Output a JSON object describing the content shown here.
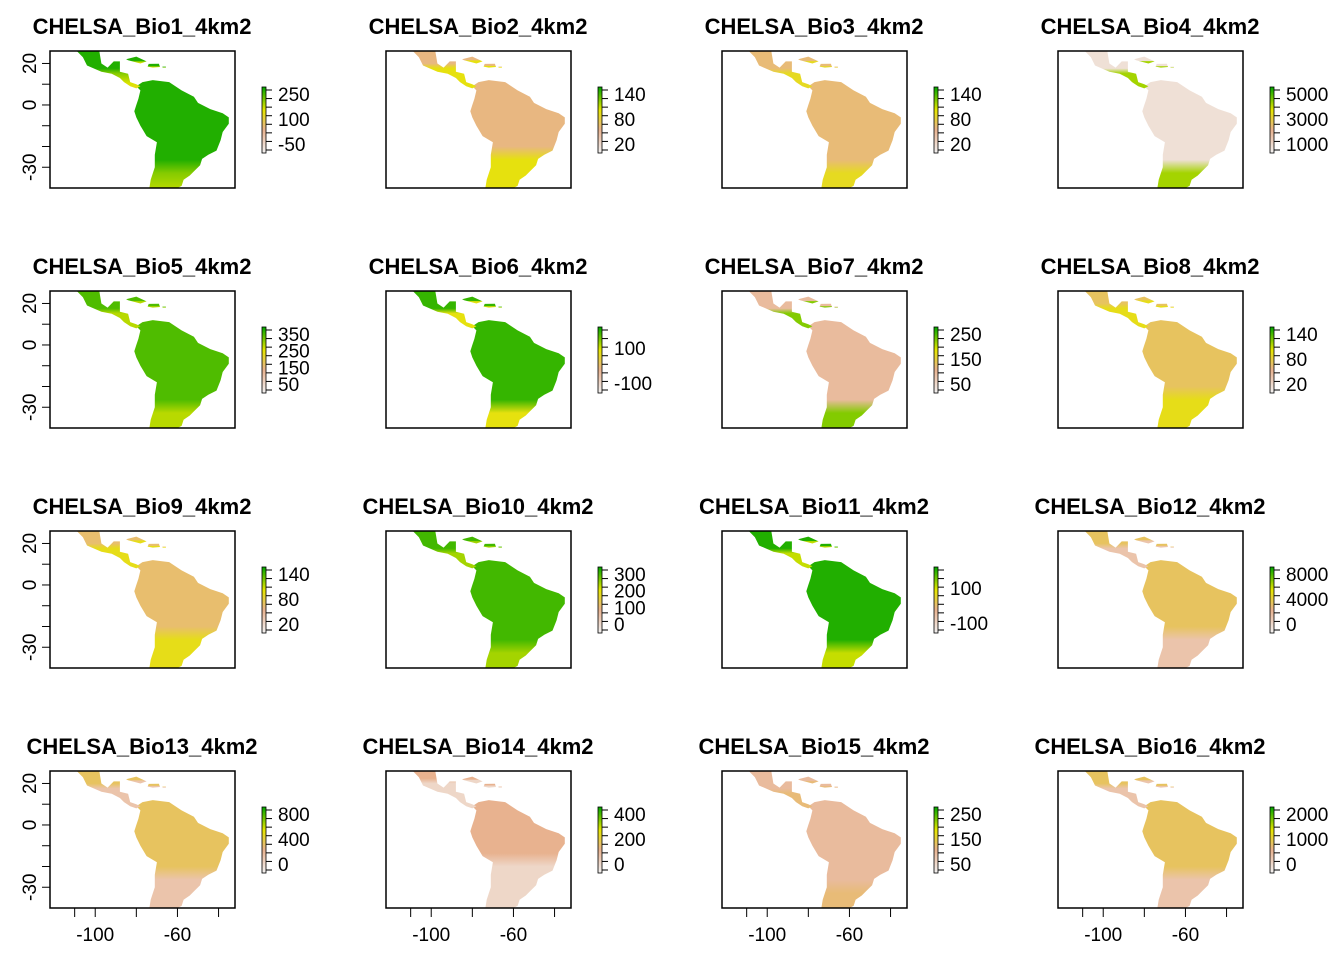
{
  "figure": {
    "colors": {
      "low": "#f2f2f2",
      "mid1": "#e8b28f",
      "mid2": "#e6e600",
      "high": "#00a600",
      "frame": "#000000"
    },
    "shared_axes": {
      "x_ticks": [
        -100,
        -60
      ],
      "y_ticks": [
        20,
        0,
        -30
      ]
    }
  },
  "chart_data": [
    {
      "type": "heatmap",
      "title": "CHELSA_Bio1_4km2",
      "legend_ticks": [
        "250",
        "100",
        "-50"
      ],
      "color_scale": "terrain",
      "region": "Latin America"
    },
    {
      "type": "heatmap",
      "title": "CHELSA_Bio2_4km2",
      "legend_ticks": [
        "140",
        "80",
        "20"
      ],
      "color_scale": "terrain",
      "region": "Latin America"
    },
    {
      "type": "heatmap",
      "title": "CHELSA_Bio3_4km2",
      "legend_ticks": [
        "140",
        "80",
        "20"
      ],
      "color_scale": "terrain",
      "region": "Latin America"
    },
    {
      "type": "heatmap",
      "title": "CHELSA_Bio4_4km2",
      "legend_ticks": [
        "5000",
        "3000",
        "1000"
      ],
      "color_scale": "terrain",
      "region": "Latin America"
    },
    {
      "type": "heatmap",
      "title": "CHELSA_Bio5_4km2",
      "legend_ticks": [
        "350",
        "250",
        "150",
        "50"
      ],
      "color_scale": "terrain",
      "region": "Latin America"
    },
    {
      "type": "heatmap",
      "title": "CHELSA_Bio6_4km2",
      "legend_ticks": [
        "100",
        "-100"
      ],
      "color_scale": "terrain",
      "region": "Latin America"
    },
    {
      "type": "heatmap",
      "title": "CHELSA_Bio7_4km2",
      "legend_ticks": [
        "250",
        "150",
        "50"
      ],
      "color_scale": "terrain",
      "region": "Latin America"
    },
    {
      "type": "heatmap",
      "title": "CHELSA_Bio8_4km2",
      "legend_ticks": [
        "140",
        "80",
        "20"
      ],
      "color_scale": "terrain",
      "region": "Latin America"
    },
    {
      "type": "heatmap",
      "title": "CHELSA_Bio9_4km2",
      "legend_ticks": [
        "140",
        "80",
        "20"
      ],
      "color_scale": "terrain",
      "region": "Latin America"
    },
    {
      "type": "heatmap",
      "title": "CHELSA_Bio10_4km2",
      "legend_ticks": [
        "300",
        "200",
        "100",
        "0"
      ],
      "color_scale": "terrain",
      "region": "Latin America"
    },
    {
      "type": "heatmap",
      "title": "CHELSA_Bio11_4km2",
      "legend_ticks": [
        "100",
        "-100"
      ],
      "color_scale": "terrain",
      "region": "Latin America"
    },
    {
      "type": "heatmap",
      "title": "CHELSA_Bio12_4km2",
      "legend_ticks": [
        "8000",
        "4000",
        "0"
      ],
      "color_scale": "terrain",
      "region": "Latin America"
    },
    {
      "type": "heatmap",
      "title": "CHELSA_Bio13_4km2",
      "legend_ticks": [
        "800",
        "400",
        "0"
      ],
      "color_scale": "terrain",
      "region": "Latin America"
    },
    {
      "type": "heatmap",
      "title": "CHELSA_Bio14_4km2",
      "legend_ticks": [
        "400",
        "200",
        "0"
      ],
      "color_scale": "terrain",
      "region": "Latin America"
    },
    {
      "type": "heatmap",
      "title": "CHELSA_Bio15_4km2",
      "legend_ticks": [
        "250",
        "150",
        "50"
      ],
      "color_scale": "terrain",
      "region": "Latin America"
    },
    {
      "type": "heatmap",
      "title": "CHELSA_Bio16_4km2",
      "legend_ticks": [
        "2000",
        "1000",
        "0"
      ],
      "color_scale": "terrain",
      "region": "Latin America"
    }
  ]
}
